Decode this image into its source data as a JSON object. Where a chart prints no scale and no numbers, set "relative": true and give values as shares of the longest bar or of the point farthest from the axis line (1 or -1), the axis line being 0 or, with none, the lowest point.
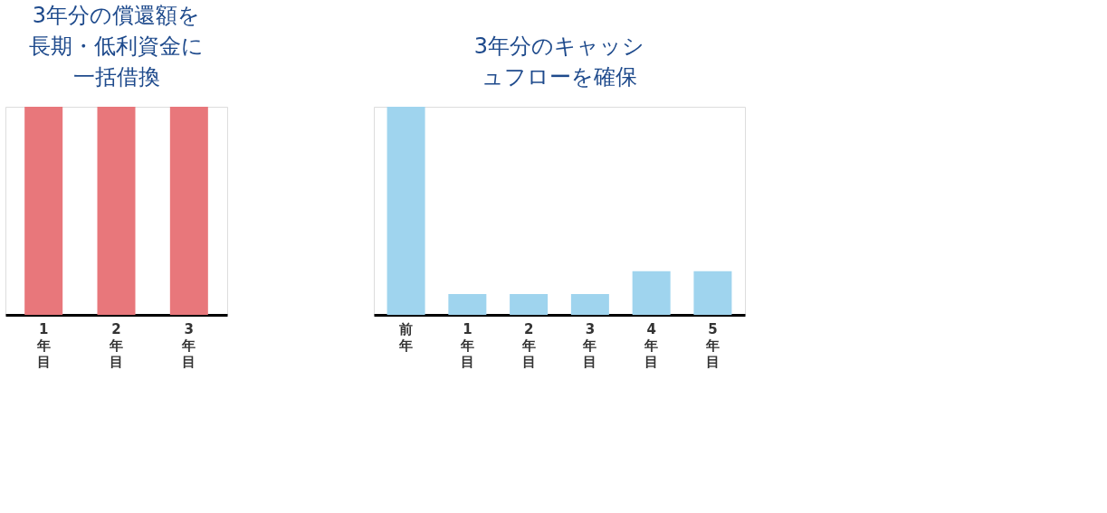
{
  "chart_data": [
    {
      "type": "bar",
      "relative": true,
      "categories": [
        "1年目",
        "2年目",
        "3年目"
      ],
      "values": [
        1,
        1,
        1
      ],
      "color": "#e8777b",
      "annotations": [
        "3年分の償還額を長期・低利資金に一括借換"
      ]
    },
    {
      "type": "bar",
      "relative": true,
      "categories": [
        "前年",
        "1年目",
        "2年目",
        "3年目",
        "4年目",
        "5年目"
      ],
      "values": [
        1,
        0.1,
        0.1,
        0.1,
        0.21,
        0.21
      ],
      "color": "#9fd4ee",
      "annotations": [
        "3年分のキャッシュフローを確保"
      ]
    }
  ]
}
